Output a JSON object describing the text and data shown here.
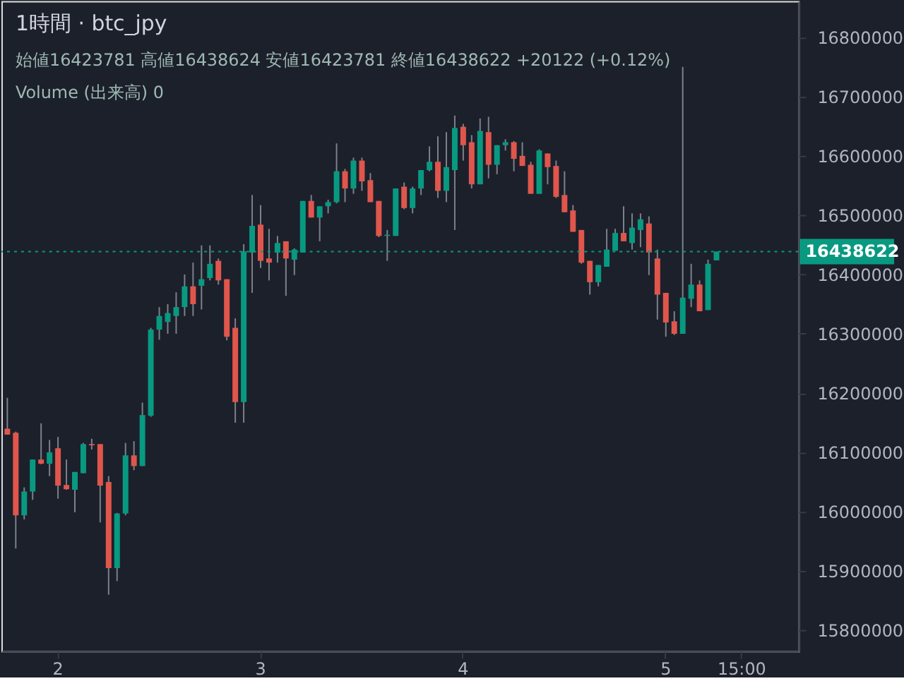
{
  "chart_data": {
    "type": "candlestick",
    "title": "1時間 · btc_jpy",
    "annotations": [
      "始値16423781 高値16438624 安値16423781 終値16438622 +20122 (+0.12%)",
      "Volume (出来高) 0"
    ],
    "categories": [
      null,
      null,
      null,
      null,
      null,
      null,
      "2",
      null,
      null,
      null,
      null,
      null,
      null,
      null,
      null,
      null,
      null,
      null,
      null,
      null,
      null,
      null,
      null,
      null,
      null,
      null,
      null,
      null,
      null,
      null,
      "3",
      null,
      null,
      null,
      null,
      null,
      null,
      null,
      null,
      null,
      null,
      null,
      null,
      null,
      null,
      null,
      null,
      null,
      null,
      null,
      null,
      null,
      null,
      null,
      "4",
      null,
      null,
      null,
      null,
      null,
      null,
      null,
      null,
      null,
      null,
      null,
      null,
      null,
      null,
      null,
      null,
      null,
      null,
      null,
      null,
      null,
      null,
      null,
      "5",
      null,
      null,
      null,
      null,
      null,
      null,
      null,
      null,
      "15:00",
      null,
      null,
      null,
      null,
      null,
      null
    ],
    "ohlc": [
      [
        16140000,
        16192000,
        16130000,
        16130000
      ],
      [
        16133000,
        16135000,
        15938000,
        15994000
      ],
      [
        15994000,
        16041000,
        15987000,
        16034000
      ],
      [
        16034000,
        16088000,
        16020000,
        16088000
      ],
      [
        16088000,
        16149000,
        16080000,
        16081000
      ],
      [
        16081000,
        16121000,
        16060000,
        16100000
      ],
      [
        16107000,
        16126000,
        16022000,
        16044000
      ],
      [
        16045000,
        16088000,
        16037000,
        16038000
      ],
      [
        16037000,
        16067000,
        15999000,
        16067000
      ],
      [
        16065000,
        16116000,
        16065000,
        16114000
      ],
      [
        16114000,
        16123000,
        16105000,
        16112000
      ],
      [
        16114000,
        16114000,
        15982000,
        16044000
      ],
      [
        16050000,
        16060000,
        15860000,
        15905000
      ],
      [
        15905000,
        15998000,
        15883000,
        15997000
      ],
      [
        15997000,
        16116000,
        15994000,
        16095000
      ],
      [
        16095000,
        16119000,
        16070000,
        16077000
      ],
      [
        16077000,
        16184000,
        16077000,
        16163000
      ],
      [
        16162000,
        16310000,
        16160000,
        16307000
      ],
      [
        16307000,
        16345000,
        16290000,
        16330000
      ],
      [
        16320000,
        16350000,
        16300000,
        16335000
      ],
      [
        16330000,
        16370000,
        16300000,
        16345000
      ],
      [
        16345000,
        16400000,
        16330000,
        16380000
      ],
      [
        16380000,
        16420000,
        16330000,
        16350000
      ],
      [
        16381000,
        16449000,
        16341000,
        16392000
      ],
      [
        16394000,
        16449000,
        16390000,
        16418000
      ],
      [
        16423000,
        16427000,
        16383000,
        16390000
      ],
      [
        16392000,
        16392000,
        16289000,
        16295000
      ],
      [
        16310000,
        16326000,
        16150000,
        16185000
      ],
      [
        16185000,
        16451000,
        16150000,
        16439000
      ],
      [
        16437000,
        16534000,
        16369000,
        16482000
      ],
      [
        16484000,
        16517000,
        16411000,
        16423000
      ],
      [
        16427000,
        16477000,
        16390000,
        16420000
      ],
      [
        16437000,
        16465000,
        16420000,
        16453000
      ],
      [
        16456000,
        16456000,
        16364000,
        16427000
      ],
      [
        16425000,
        16444000,
        16399000,
        16442000
      ],
      [
        16437000,
        16524000,
        16437000,
        16524000
      ],
      [
        16524000,
        16534000,
        16496000,
        16496000
      ],
      [
        16496000,
        16515000,
        16456000,
        16515000
      ],
      [
        16515000,
        16526000,
        16503000,
        16522000
      ],
      [
        16522000,
        16621000,
        16520000,
        16574000
      ],
      [
        16574000,
        16578000,
        16522000,
        16545000
      ],
      [
        16545000,
        16597000,
        16536000,
        16592000
      ],
      [
        16592000,
        16597000,
        16541000,
        16557000
      ],
      [
        16559000,
        16571000,
        16522000,
        16522000
      ],
      [
        16524000,
        16524000,
        16463000,
        16465000
      ],
      [
        16465000,
        16475000,
        16423000,
        16467000
      ],
      [
        16465000,
        16545000,
        16465000,
        16545000
      ],
      [
        16548000,
        16555000,
        16510000,
        16512000
      ],
      [
        16512000,
        16548000,
        16503000,
        16545000
      ],
      [
        16545000,
        16576000,
        16534000,
        16576000
      ],
      [
        16576000,
        16616000,
        16574000,
        16590000
      ],
      [
        16590000,
        16633000,
        16529000,
        16541000
      ],
      [
        16541000,
        16640000,
        16522000,
        16581000
      ],
      [
        16576000,
        16668000,
        16475000,
        16647000
      ],
      [
        16649000,
        16654000,
        16592000,
        16618000
      ],
      [
        16623000,
        16635000,
        16545000,
        16552000
      ],
      [
        16552000,
        16663000,
        16552000,
        16642000
      ],
      [
        16640000,
        16666000,
        16562000,
        16585000
      ],
      [
        16585000,
        16618000,
        16569000,
        16618000
      ],
      [
        16618000,
        16628000,
        16609000,
        16623000
      ],
      [
        16623000,
        16625000,
        16574000,
        16595000
      ],
      [
        16600000,
        16623000,
        16583000,
        16583000
      ],
      [
        16585000,
        16590000,
        16536000,
        16536000
      ],
      [
        16536000,
        16611000,
        16536000,
        16609000
      ],
      [
        16604000,
        16604000,
        16552000,
        16581000
      ],
      [
        16583000,
        16592000,
        16529000,
        16531000
      ],
      [
        16534000,
        16574000,
        16505000,
        16505000
      ],
      [
        16508000,
        16517000,
        16472000,
        16472000
      ],
      [
        16475000,
        16475000,
        16418000,
        16420000
      ],
      [
        16423000,
        16423000,
        16366000,
        16387000
      ],
      [
        16387000,
        16416000,
        16380000,
        16416000
      ],
      [
        16413000,
        16477000,
        16413000,
        16442000
      ],
      [
        16440000,
        16477000,
        16440000,
        16470000
      ],
      [
        16470000,
        16515000,
        16456000,
        16456000
      ],
      [
        16453000,
        16503000,
        16442000,
        16479000
      ],
      [
        16475000,
        16503000,
        16446000,
        16493000
      ],
      [
        16486000,
        16498000,
        16399000,
        16437000
      ],
      [
        16427000,
        16442000,
        16324000,
        16366000
      ],
      [
        16369000,
        16369000,
        16295000,
        16319000
      ],
      [
        16321000,
        16338000,
        16298000,
        16300000
      ],
      [
        16300000,
        16750000,
        16300000,
        16361000
      ],
      [
        16359000,
        16418000,
        16345000,
        16383000
      ],
      [
        16383000,
        16390000,
        16338000,
        16338000
      ],
      [
        16340000,
        16425000,
        16340000,
        16418000
      ],
      [
        16423781,
        16438624,
        16423781,
        16438622
      ],
      null,
      null,
      null,
      null,
      null,
      null,
      null,
      null,
      null
    ],
    "colors": [
      "#e0564c",
      "#e0564c",
      "#089981",
      "#089981",
      "#e0564c",
      "#089981",
      "#e0564c",
      "#e0564c",
      "#089981",
      "#089981",
      "#e0564c",
      "#e0564c",
      "#e0564c",
      "#089981",
      "#089981",
      "#e0564c",
      "#089981",
      "#089981",
      "#089981",
      "#089981",
      "#089981",
      "#089981",
      "#e0564c",
      "#089981",
      "#089981",
      "#e0564c",
      "#e0564c",
      "#e0564c",
      "#089981",
      "#089981",
      "#e0564c",
      "#e0564c",
      "#089981",
      "#e0564c",
      "#089981",
      "#089981",
      "#e0564c",
      "#089981",
      "#089981",
      "#089981",
      "#e0564c",
      "#089981",
      "#e0564c",
      "#e0564c",
      "#e0564c",
      "#089981",
      "#089981",
      "#e0564c",
      "#089981",
      "#089981",
      "#089981",
      "#e0564c",
      "#089981",
      "#089981",
      "#e0564c",
      "#e0564c",
      "#089981",
      "#e0564c",
      "#089981",
      "#089981",
      "#e0564c",
      "#e0564c",
      "#e0564c",
      "#089981",
      "#e0564c",
      "#e0564c",
      "#e0564c",
      "#e0564c",
      "#e0564c",
      "#e0564c",
      "#089981",
      "#089981",
      "#089981",
      "#e0564c",
      "#089981",
      "#089981",
      "#e0564c",
      "#e0564c",
      "#e0564c",
      "#e0564c",
      "#089981",
      "#089981",
      "#e0564c",
      "#089981",
      "#089981",
      null,
      null,
      null,
      null,
      null,
      null,
      null,
      null,
      null
    ],
    "ylim": [
      15765000,
      16861000
    ],
    "yticks": [
      15800000,
      15900000,
      16000000,
      16100000,
      16200000,
      16300000,
      16400000,
      16500000,
      16600000,
      16700000,
      16800000
    ],
    "ref_lines": [
      {
        "axis": "y",
        "value": 16438622,
        "label": "16438622",
        "color": "#089981",
        "line_style": "dotted"
      }
    ],
    "grid": false
  }
}
